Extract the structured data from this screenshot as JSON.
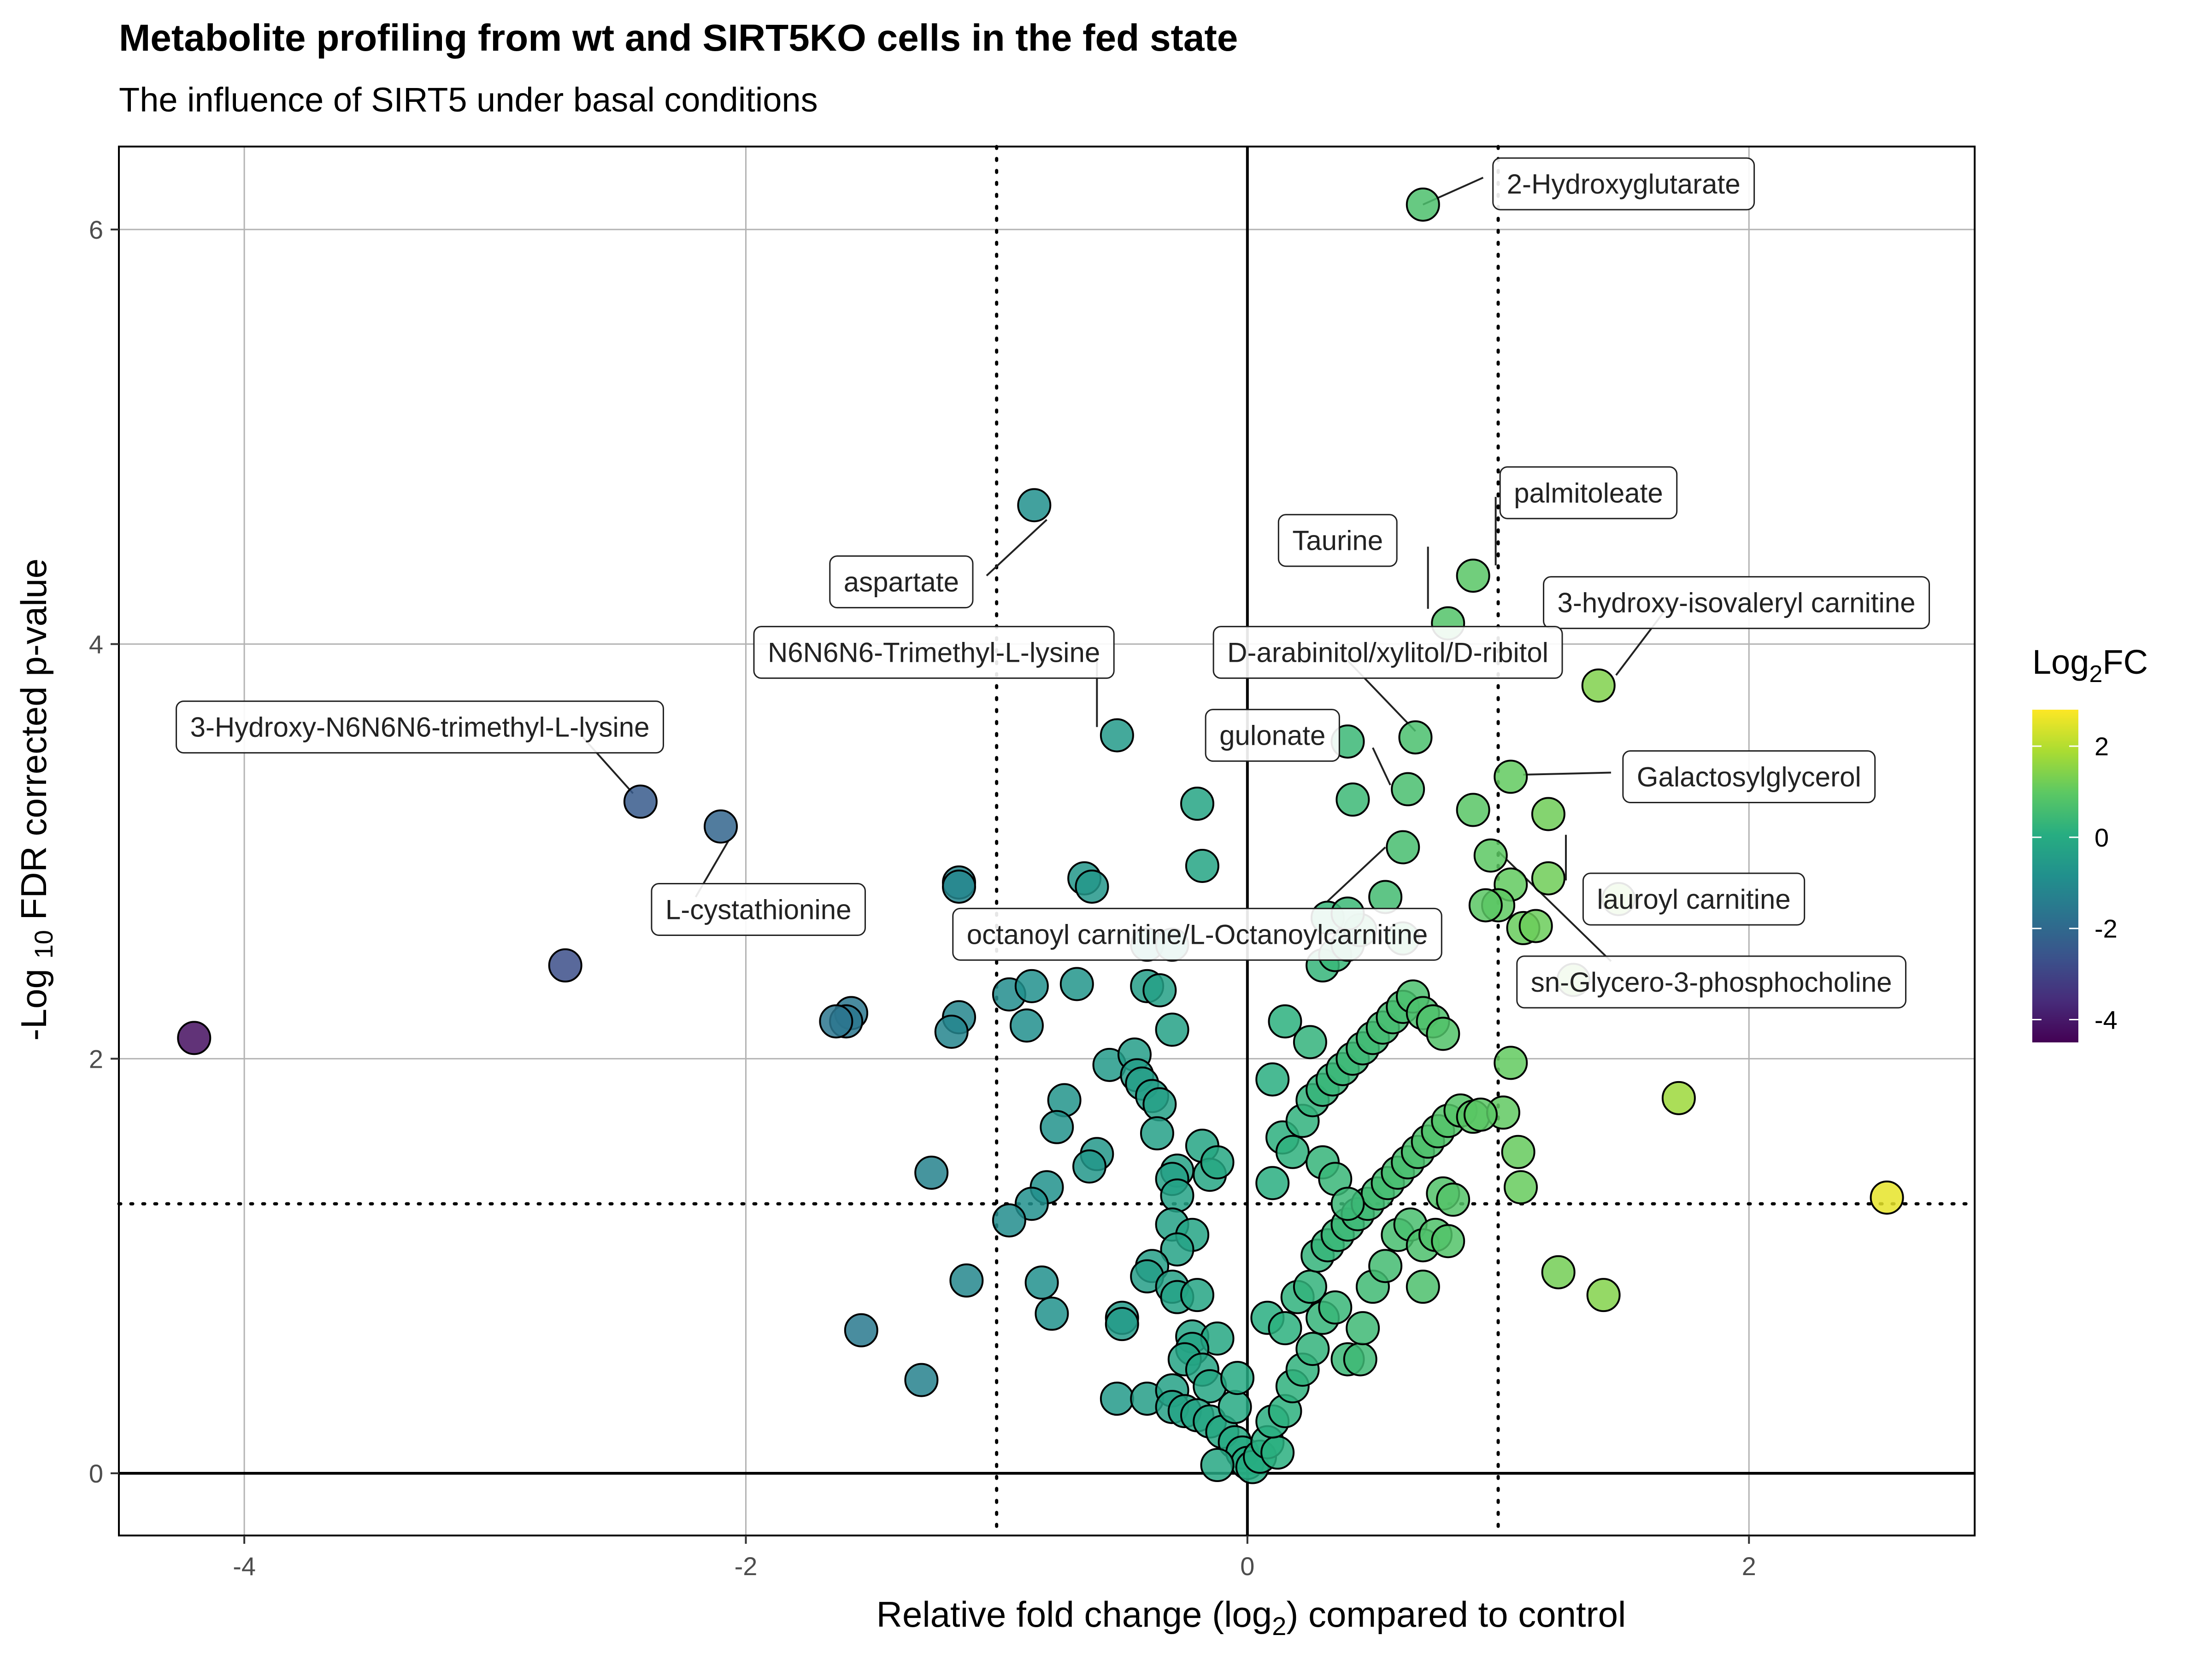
{
  "chart_data": {
    "type": "scatter",
    "title": "Metabolite profiling from wt and SIRT5KO cells in the fed state",
    "subtitle": "The influence of SIRT5 under basal conditions",
    "xlabel_parts": [
      "Relative fold change (log",
      "2",
      ") compared to control"
    ],
    "ylabel_parts": [
      "-Log ",
      "10",
      " FDR corrected p-value"
    ],
    "xlim": [
      -4.5,
      2.9
    ],
    "ylim": [
      -0.3,
      6.4
    ],
    "xticks": [
      -4,
      -2,
      0,
      2
    ],
    "yticks": [
      0,
      2,
      4,
      6
    ],
    "grid": true,
    "reference_lines": {
      "solid_x": 0,
      "solid_y": 0,
      "dotted_x": [
        -1,
        1
      ],
      "dotted_y": 1.3
    },
    "color_scale": {
      "palette": "viridis",
      "title_parts": [
        "Log",
        "2",
        "FC"
      ],
      "min": -4.5,
      "max": 2.8,
      "ticks": [
        -4,
        -2,
        0,
        2
      ]
    },
    "points": [
      [
        -4.2,
        2.1
      ],
      [
        -2.72,
        2.45
      ],
      [
        -2.42,
        3.24
      ],
      [
        -2.1,
        3.12
      ],
      [
        -0.85,
        4.67
      ],
      [
        -0.52,
        3.56
      ],
      [
        -0.2,
        3.23
      ],
      [
        -0.18,
        2.93
      ],
      [
        -1.15,
        2.85
      ],
      [
        -1.15,
        2.83
      ],
      [
        -1.15,
        2.2
      ],
      [
        -1.18,
        2.13
      ],
      [
        -0.65,
        2.87
      ],
      [
        -0.62,
        2.83
      ],
      [
        -1.58,
        2.22
      ],
      [
        -1.6,
        2.18
      ],
      [
        -1.64,
        2.18
      ],
      [
        -0.95,
        2.31
      ],
      [
        -0.86,
        2.35
      ],
      [
        -0.68,
        2.36
      ],
      [
        -0.4,
        2.55
      ],
      [
        -0.3,
        2.55
      ],
      [
        -0.4,
        2.35
      ],
      [
        -0.35,
        2.33
      ],
      [
        -0.3,
        2.14
      ],
      [
        -0.88,
        2.16
      ],
      [
        -0.55,
        1.97
      ],
      [
        -0.45,
        2.02
      ],
      [
        -0.44,
        1.92
      ],
      [
        -0.42,
        1.88
      ],
      [
        -0.38,
        1.82
      ],
      [
        -0.35,
        1.78
      ],
      [
        -0.73,
        1.8
      ],
      [
        -0.76,
        1.67
      ],
      [
        -0.6,
        1.54
      ],
      [
        -0.63,
        1.48
      ],
      [
        -0.36,
        1.64
      ],
      [
        -0.18,
        1.58
      ],
      [
        -0.28,
        1.46
      ],
      [
        -0.3,
        1.42
      ],
      [
        -0.28,
        1.34
      ],
      [
        -0.15,
        1.44
      ],
      [
        -0.12,
        1.5
      ],
      [
        -1.26,
        1.45
      ],
      [
        -0.8,
        1.38
      ],
      [
        -0.86,
        1.3
      ],
      [
        -0.95,
        1.22
      ],
      [
        -0.3,
        1.2
      ],
      [
        -0.22,
        1.15
      ],
      [
        -0.28,
        1.08
      ],
      [
        -0.38,
        1.0
      ],
      [
        -0.4,
        0.95
      ],
      [
        -0.3,
        0.9
      ],
      [
        -0.28,
        0.85
      ],
      [
        -0.2,
        0.86
      ],
      [
        -1.12,
        0.93
      ],
      [
        -0.82,
        0.92
      ],
      [
        -0.78,
        0.77
      ],
      [
        -0.5,
        0.75
      ],
      [
        -0.5,
        0.72
      ],
      [
        -1.54,
        0.69
      ],
      [
        -0.22,
        0.66
      ],
      [
        -0.12,
        0.65
      ],
      [
        -0.22,
        0.6
      ],
      [
        -0.25,
        0.55
      ],
      [
        -0.18,
        0.5
      ],
      [
        -0.15,
        0.42
      ],
      [
        -1.3,
        0.45
      ],
      [
        -0.52,
        0.36
      ],
      [
        -0.4,
        0.36
      ],
      [
        -0.3,
        0.4
      ],
      [
        -0.3,
        0.32
      ],
      [
        -0.25,
        0.3
      ],
      [
        -0.2,
        0.28
      ],
      [
        -0.15,
        0.25
      ],
      [
        -0.1,
        0.2
      ],
      [
        -0.05,
        0.15
      ],
      [
        -0.02,
        0.1
      ],
      [
        0.0,
        0.05
      ],
      [
        0.02,
        0.03
      ],
      [
        0.05,
        0.08
      ],
      [
        0.08,
        0.15
      ],
      [
        0.12,
        0.1
      ],
      [
        -0.05,
        0.32
      ],
      [
        -0.04,
        0.46
      ],
      [
        -0.12,
        0.04
      ],
      [
        0.1,
        0.25
      ],
      [
        0.15,
        0.3
      ],
      [
        0.18,
        0.42
      ],
      [
        0.22,
        0.5
      ],
      [
        0.26,
        0.6
      ],
      [
        0.3,
        0.75
      ],
      [
        0.35,
        0.8
      ],
      [
        0.4,
        0.55
      ],
      [
        0.45,
        0.55
      ],
      [
        0.46,
        0.7
      ],
      [
        0.5,
        0.9
      ],
      [
        0.55,
        1.0
      ],
      [
        0.6,
        1.15
      ],
      [
        0.65,
        1.2
      ],
      [
        0.7,
        1.1
      ],
      [
        0.75,
        1.15
      ],
      [
        0.8,
        1.12
      ],
      [
        0.7,
        0.9
      ],
      [
        0.08,
        0.75
      ],
      [
        0.15,
        0.7
      ],
      [
        0.2,
        0.85
      ],
      [
        0.25,
        0.9
      ],
      [
        0.28,
        1.05
      ],
      [
        0.32,
        1.1
      ],
      [
        0.36,
        1.15
      ],
      [
        0.4,
        1.2
      ],
      [
        0.44,
        1.25
      ],
      [
        0.48,
        1.3
      ],
      [
        0.52,
        1.35
      ],
      [
        0.56,
        1.4
      ],
      [
        0.6,
        1.45
      ],
      [
        0.64,
        1.5
      ],
      [
        0.68,
        1.55
      ],
      [
        0.72,
        1.6
      ],
      [
        0.76,
        1.65
      ],
      [
        0.8,
        1.7
      ],
      [
        0.85,
        1.75
      ],
      [
        0.9,
        1.72
      ],
      [
        0.78,
        1.35
      ],
      [
        0.82,
        1.32
      ],
      [
        0.1,
        1.4
      ],
      [
        0.14,
        1.62
      ],
      [
        0.18,
        1.55
      ],
      [
        0.22,
        1.7
      ],
      [
        0.26,
        1.8
      ],
      [
        0.3,
        1.85
      ],
      [
        0.34,
        1.9
      ],
      [
        0.38,
        1.95
      ],
      [
        0.42,
        2.0
      ],
      [
        0.46,
        2.05
      ],
      [
        0.5,
        2.1
      ],
      [
        0.54,
        2.15
      ],
      [
        0.58,
        2.2
      ],
      [
        0.62,
        2.25
      ],
      [
        0.66,
        2.3
      ],
      [
        0.7,
        2.22
      ],
      [
        0.74,
        2.18
      ],
      [
        0.78,
        2.12
      ],
      [
        0.15,
        2.18
      ],
      [
        0.25,
        2.08
      ],
      [
        0.1,
        1.9
      ],
      [
        0.3,
        1.5
      ],
      [
        0.35,
        1.42
      ],
      [
        0.4,
        1.3
      ],
      [
        0.3,
        2.45
      ],
      [
        0.35,
        2.5
      ],
      [
        0.4,
        2.55
      ],
      [
        0.45,
        2.62
      ],
      [
        0.32,
        2.68
      ],
      [
        0.4,
        2.7
      ],
      [
        0.55,
        2.78
      ],
      [
        0.62,
        2.58
      ],
      [
        0.62,
        3.02
      ],
      [
        0.42,
        3.25
      ],
      [
        0.64,
        3.3
      ],
      [
        0.4,
        3.53
      ],
      [
        0.67,
        3.55
      ],
      [
        0.8,
        4.1
      ],
      [
        0.9,
        4.33
      ],
      [
        0.7,
        6.12
      ],
      [
        1.4,
        3.8
      ],
      [
        1.05,
        3.36
      ],
      [
        0.9,
        3.2
      ],
      [
        1.2,
        3.18
      ],
      [
        0.97,
        2.98
      ],
      [
        1.05,
        2.84
      ],
      [
        1.2,
        2.87
      ],
      [
        1.0,
        2.74
      ],
      [
        0.95,
        2.74
      ],
      [
        1.1,
        2.63
      ],
      [
        1.15,
        2.64
      ],
      [
        1.48,
        2.77
      ],
      [
        1.3,
        2.38
      ],
      [
        1.05,
        1.98
      ],
      [
        1.72,
        1.81
      ],
      [
        1.02,
        1.74
      ],
      [
        0.93,
        1.73
      ],
      [
        1.08,
        1.55
      ],
      [
        1.09,
        1.38
      ],
      [
        2.55,
        1.33
      ],
      [
        1.24,
        0.97
      ],
      [
        1.42,
        0.86
      ]
    ],
    "annotations": [
      {
        "text": "2-Hydroxyglutarate",
        "px": 0.7,
        "py": 6.12,
        "lx": 0.94,
        "ly": 6.25
      },
      {
        "text": "palmitoleate",
        "px": 0.99,
        "py": 4.38,
        "lx": 0.99,
        "ly": 4.71
      },
      {
        "text": "Taurine",
        "px": 0.72,
        "py": 4.17,
        "lx": 0.72,
        "ly": 4.47
      },
      {
        "text": "3-hydroxy-isovaleryl carnitine",
        "px": 1.47,
        "py": 3.85,
        "lx": 1.67,
        "ly": 4.17
      },
      {
        "text": "aspartate",
        "px": -0.8,
        "py": 4.6,
        "lx": -1.04,
        "ly": 4.33
      },
      {
        "text": "N6N6N6-Trimethyl-L-lysine",
        "px": -0.6,
        "py": 3.6,
        "lx": -0.6,
        "ly": 3.92
      },
      {
        "text": "D-arabinitol/xylitol/D-ribitol",
        "px": 0.67,
        "py": 3.58,
        "lx": 0.4,
        "ly": 3.92
      },
      {
        "text": "3-Hydroxy-N6N6N6-trimethyl-L-lysine",
        "px": -2.45,
        "py": 3.28,
        "lx": -2.65,
        "ly": 3.55
      },
      {
        "text": "gulonate",
        "px": 0.57,
        "py": 3.32,
        "lx": 0.5,
        "ly": 3.5
      },
      {
        "text": "Galactosylglycerol",
        "px": 1.1,
        "py": 3.37,
        "lx": 1.45,
        "ly": 3.38
      },
      {
        "text": "lauroyl carnitine",
        "px": 1.27,
        "py": 3.08,
        "lx": 1.27,
        "ly": 2.86
      },
      {
        "text": "L-cystathionine",
        "px": -2.07,
        "py": 3.05,
        "lx": -2.2,
        "ly": 2.78
      },
      {
        "text": "octanoyl carnitine/L-Octanoylcarnitine",
        "px": 0.55,
        "py": 3.02,
        "lx": 0.32,
        "ly": 2.76
      },
      {
        "text": "sn-Glycero-3-phosphocholine",
        "px": 1.0,
        "py": 3.0,
        "lx": 1.45,
        "ly": 2.47
      }
    ],
    "labels": [
      {
        "text": "2-Hydroxyglutarate",
        "x": 1.5,
        "y": 6.22
      },
      {
        "text": "palmitoleate",
        "x": 1.36,
        "y": 4.73
      },
      {
        "text": "Taurine",
        "x": 0.36,
        "y": 4.5
      },
      {
        "text": "3-hydroxy-isovaleryl carnitine",
        "x": 1.95,
        "y": 4.2
      },
      {
        "text": "aspartate",
        "x": -1.38,
        "y": 4.3
      },
      {
        "text": "N6N6N6-Trimethyl-L-lysine",
        "x": -1.25,
        "y": 3.96
      },
      {
        "text": "D-arabinitol/xylitol/D-ribitol",
        "x": 0.56,
        "y": 3.96
      },
      {
        "text": "3-Hydroxy-N6N6N6-trimethyl-L-lysine",
        "x": -3.3,
        "y": 3.6
      },
      {
        "text": "gulonate",
        "x": 0.1,
        "y": 3.56
      },
      {
        "text": "Galactosylglycerol",
        "x": 2.0,
        "y": 3.36
      },
      {
        "text": "lauroyl carnitine",
        "x": 1.78,
        "y": 2.77
      },
      {
        "text": "L-cystathionine",
        "x": -1.95,
        "y": 2.72
      },
      {
        "text": "octanoyl carnitine/L-Octanoylcarnitine",
        "x": -0.2,
        "y": 2.6
      },
      {
        "text": "sn-Glycero-3-phosphocholine",
        "x": 1.85,
        "y": 2.37
      }
    ]
  }
}
